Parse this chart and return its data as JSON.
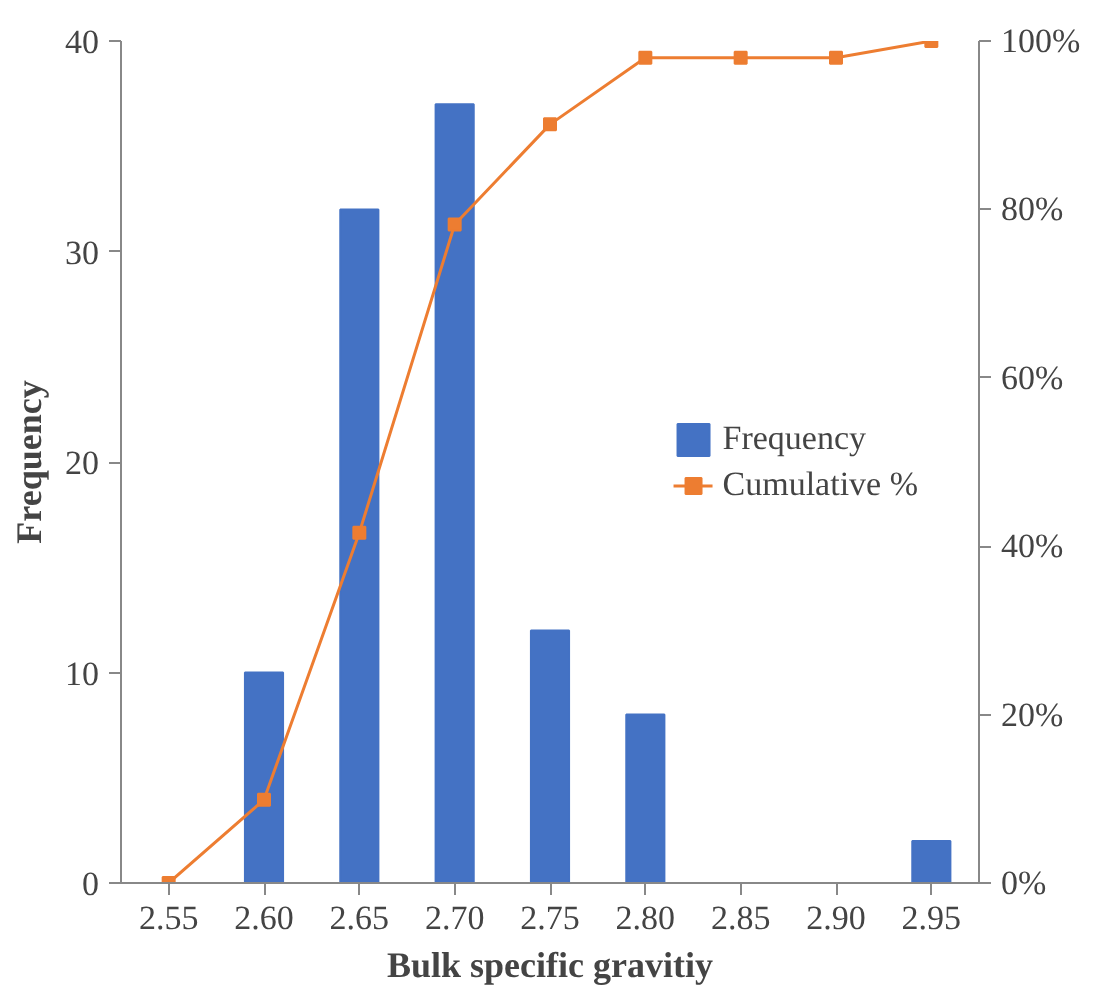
{
  "chart_data": {
    "type": "bar",
    "xlabel": "Bulk specific gravitiy",
    "ylabel": "Frequency",
    "categories": [
      "2.55",
      "2.60",
      "2.65",
      "2.70",
      "2.75",
      "2.80",
      "2.85",
      "2.90",
      "2.95"
    ],
    "series": [
      {
        "name": "Frequency",
        "color": "#4472c4",
        "values": [
          0,
          10,
          32,
          37,
          12,
          8,
          0,
          0,
          2
        ]
      },
      {
        "name": "Cumulative %",
        "type": "line",
        "axis": "y2",
        "color": "#ed7d31",
        "marker": "square",
        "values": [
          0,
          9.9,
          41.6,
          78.2,
          90.1,
          98.0,
          98.0,
          98.0,
          100
        ]
      }
    ],
    "ylim": [
      0,
      40
    ],
    "yticks": [
      0,
      10,
      20,
      30,
      40
    ],
    "y2lim": [
      0,
      100
    ],
    "y2ticks": [
      {
        "value": 0,
        "label": "0%"
      },
      {
        "value": 20,
        "label": "20%"
      },
      {
        "value": 40,
        "label": "40%"
      },
      {
        "value": 60,
        "label": "60%"
      },
      {
        "value": 80,
        "label": "80%"
      },
      {
        "value": 100,
        "label": "100%"
      }
    ],
    "legend": "right",
    "grid": false
  }
}
